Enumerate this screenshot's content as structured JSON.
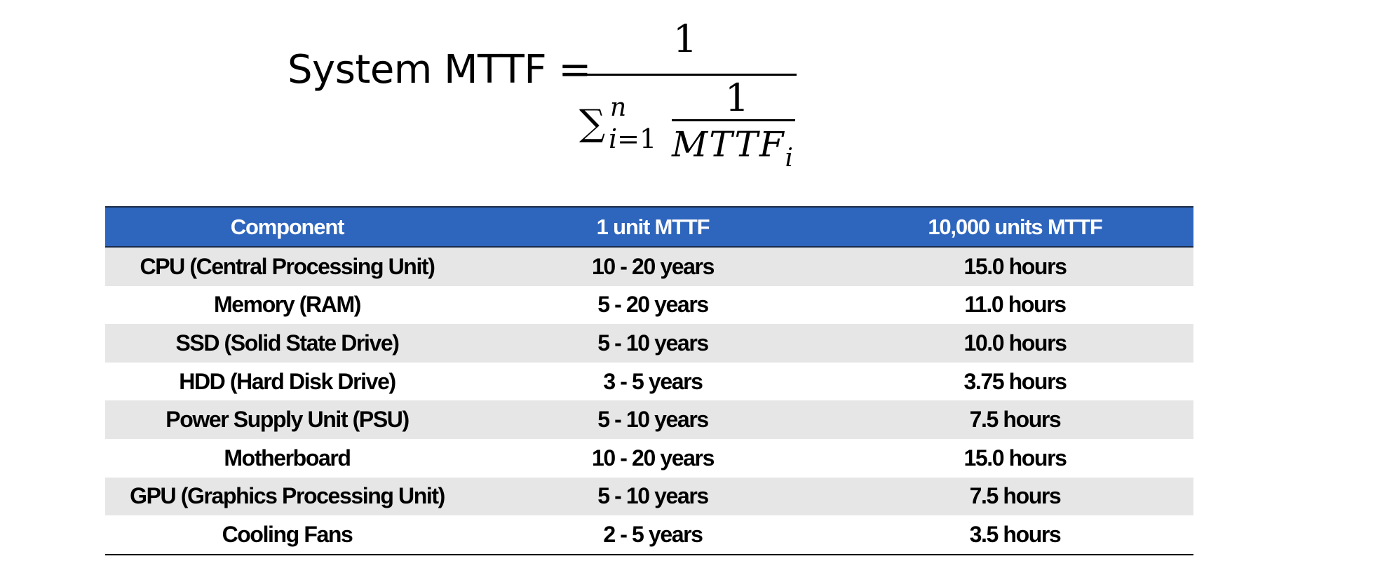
{
  "formula": {
    "lhs": "System MTTF =",
    "numerator": "1",
    "sum_symbol": "∑",
    "sum_upper": "n",
    "sum_lower_var": "i",
    "sum_lower_rest": "=1",
    "inner_numerator": "1",
    "inner_denominator": "MTTF",
    "inner_denominator_sub": "i"
  },
  "table": {
    "headers": [
      "Component",
      "1 unit MTTF",
      "10,000 units MTTF"
    ],
    "rows": [
      [
        "CPU (Central Processing Unit)",
        "10 - 20 years",
        "15.0 hours"
      ],
      [
        "Memory (RAM)",
        "5 - 20 years",
        "11.0 hours"
      ],
      [
        "SSD (Solid State Drive)",
        "5 - 10 years",
        "10.0 hours"
      ],
      [
        "HDD (Hard Disk Drive)",
        "3 - 5 years",
        "3.75 hours"
      ],
      [
        "Power Supply Unit (PSU)",
        "5 - 10 years",
        "7.5 hours"
      ],
      [
        "Motherboard",
        "10 - 20 years",
        "15.0 hours"
      ],
      [
        "GPU (Graphics Processing Unit)",
        "5 - 10 years",
        "7.5 hours"
      ],
      [
        "Cooling Fans",
        "2 - 5 years",
        "3.5 hours"
      ]
    ]
  },
  "colors": {
    "header_bg": "#2e65bd",
    "header_text": "#ffffff",
    "stripe_bg": "#e6e6e6"
  }
}
